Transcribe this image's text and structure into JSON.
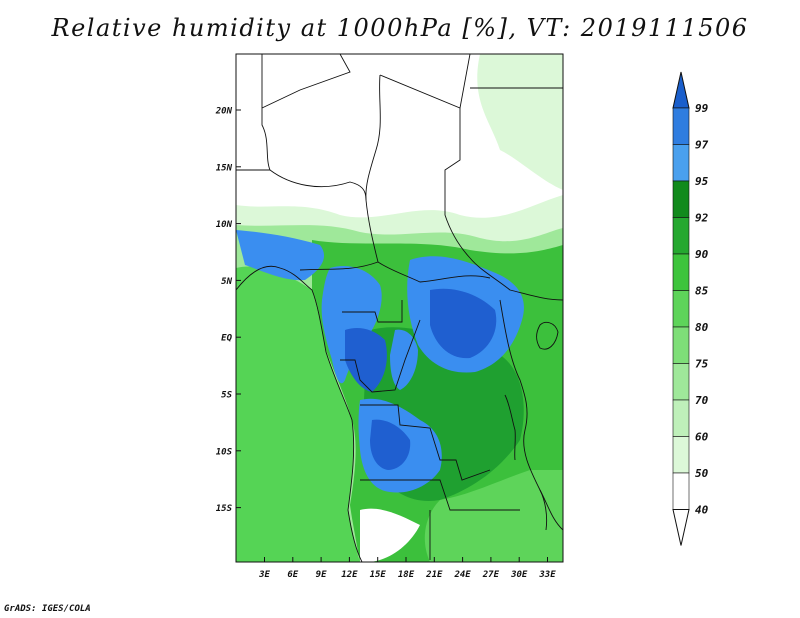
{
  "title": "Relative humidity at 1000hPa [%], VT: 2019111506",
  "credit": "GrADS: IGES/COLA",
  "map": {
    "lat_labels": [
      "20N",
      "15N",
      "10N",
      "5N",
      "EQ",
      "5S",
      "10S",
      "15S"
    ],
    "lon_labels": [
      "3E",
      "6E",
      "9E",
      "12E",
      "15E",
      "18E",
      "21E",
      "24E",
      "27E",
      "30E",
      "33E"
    ]
  },
  "colorbar": {
    "levels": [
      "99",
      "97",
      "95",
      "92",
      "90",
      "85",
      "80",
      "75",
      "70",
      "60",
      "50",
      "40"
    ],
    "colors": [
      "#1a5fcc",
      "#2f7de0",
      "#4aa0ee",
      "#118a1c",
      "#25a830",
      "#3dc43c",
      "#5ed45a",
      "#7ede78",
      "#9fe89a",
      "#bff0ba",
      "#dcf8d8",
      "#ffffff"
    ],
    "triangle_top_color": "#1a5fcc",
    "triangle_bottom_color": "#ffffff"
  },
  "colors": {
    "land_dry": "#ffffff",
    "ocean": "#66dd66",
    "green_mid": "#3cc03c",
    "green_dark": "#1fa030",
    "blue_light": "#3a8ef0",
    "blue_dark": "#1f5fd0"
  }
}
